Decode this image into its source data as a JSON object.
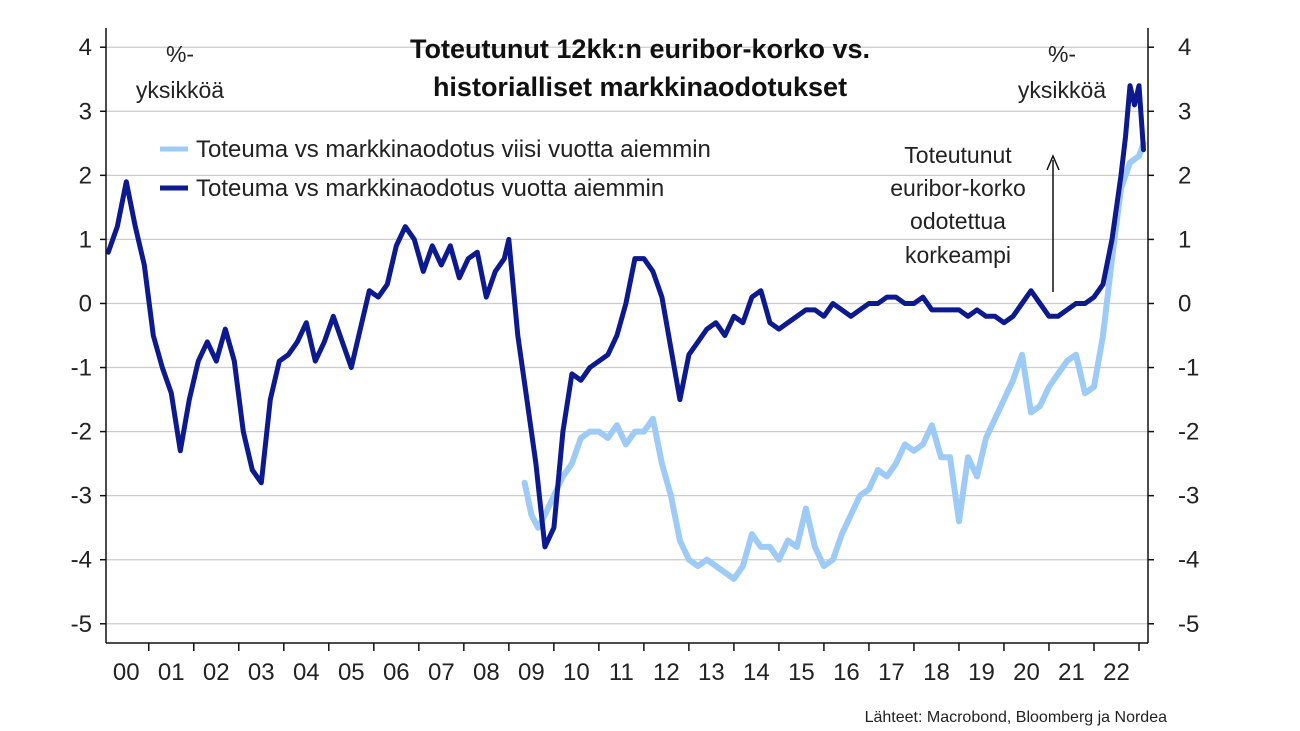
{
  "chart_data": {
    "type": "line",
    "title": [
      "Toteutunut 12kk:n euribor-korko vs.",
      "historialliset markkinaodotukset"
    ],
    "unit_left": [
      "%-",
      "yksikköä"
    ],
    "unit_right": [
      "%-",
      "yksikköä"
    ],
    "annotation": [
      "Toteutunut",
      "euribor-korko",
      "odotettua",
      "korkeampi"
    ],
    "source": "Lähteet: Macrobond, Bloomberg ja Nordea",
    "ylim": [
      -5.3,
      4.3
    ],
    "y_ticks": [
      4,
      3,
      2,
      1,
      0,
      -1,
      -2,
      -3,
      -4,
      -5
    ],
    "y_tick_labels": [
      "4",
      "3",
      "2",
      "1",
      "0",
      "-1",
      "-2",
      "-3",
      "-4",
      "-5"
    ],
    "xlim": [
      1999.55,
      2022.7
    ],
    "x_tick_positions": [
      2000,
      2001,
      2002,
      2003,
      2004,
      2005,
      2006,
      2007,
      2008,
      2009,
      2010,
      2011,
      2012,
      2013,
      2014,
      2015,
      2016,
      2017,
      2018,
      2019,
      2020,
      2021,
      2022
    ],
    "x_tick_labels": [
      "00",
      "01",
      "02",
      "03",
      "04",
      "05",
      "06",
      "07",
      "08",
      "09",
      "10",
      "11",
      "12",
      "13",
      "14",
      "15",
      "16",
      "17",
      "18",
      "19",
      "20",
      "21",
      "22"
    ],
    "grid": "horizontal",
    "legend_position": "top-left",
    "colors": {
      "five_year": "#9ecbf5",
      "one_year": "#0d1a8f",
      "grid": "#cccccc",
      "axis": "#111111"
    },
    "series": [
      {
        "name": "Toteuma vs markkinaodotus viisi vuotta aiemmin",
        "color": "#9ecbf5",
        "x": [
          2008.85,
          2009.0,
          2009.15,
          2009.3,
          2009.5,
          2009.7,
          2009.9,
          2010.1,
          2010.3,
          2010.5,
          2010.7,
          2010.9,
          2011.1,
          2011.3,
          2011.5,
          2011.7,
          2011.9,
          2012.1,
          2012.3,
          2012.5,
          2012.7,
          2012.9,
          2013.1,
          2013.3,
          2013.5,
          2013.7,
          2013.9,
          2014.1,
          2014.3,
          2014.5,
          2014.7,
          2014.9,
          2015.1,
          2015.3,
          2015.5,
          2015.7,
          2015.9,
          2016.1,
          2016.3,
          2016.5,
          2016.7,
          2016.9,
          2017.1,
          2017.3,
          2017.5,
          2017.7,
          2017.9,
          2018.1,
          2018.3,
          2018.5,
          2018.7,
          2018.9,
          2019.1,
          2019.3,
          2019.5,
          2019.7,
          2019.9,
          2020.1,
          2020.3,
          2020.5,
          2020.7,
          2020.9,
          2021.1,
          2021.3,
          2021.5,
          2021.7,
          2021.9,
          2022.1,
          2022.3,
          2022.5,
          2022.6
        ],
        "values": [
          -2.8,
          -3.3,
          -3.5,
          -3.3,
          -3.0,
          -2.7,
          -2.5,
          -2.1,
          -2.0,
          -2.0,
          -2.1,
          -1.9,
          -2.2,
          -2.0,
          -2.0,
          -1.8,
          -2.5,
          -3.0,
          -3.7,
          -4.0,
          -4.1,
          -4.0,
          -4.1,
          -4.2,
          -4.3,
          -4.1,
          -3.6,
          -3.8,
          -3.8,
          -4.0,
          -3.7,
          -3.8,
          -3.2,
          -3.8,
          -4.1,
          -4.0,
          -3.6,
          -3.3,
          -3.0,
          -2.9,
          -2.6,
          -2.7,
          -2.5,
          -2.2,
          -2.3,
          -2.2,
          -1.9,
          -2.4,
          -2.4,
          -3.4,
          -2.4,
          -2.7,
          -2.1,
          -1.8,
          -1.5,
          -1.2,
          -0.8,
          -1.7,
          -1.6,
          -1.3,
          -1.1,
          -0.9,
          -0.8,
          -1.4,
          -1.3,
          -0.5,
          0.7,
          1.8,
          2.2,
          2.3,
          2.5
        ]
      },
      {
        "name": "Toteuma vs markkinaodotus vuotta aiemmin",
        "color": "#0d1a8f",
        "x": [
          1999.6,
          1999.8,
          2000.0,
          2000.2,
          2000.4,
          2000.6,
          2000.8,
          2001.0,
          2001.2,
          2001.4,
          2001.6,
          2001.8,
          2002.0,
          2002.2,
          2002.4,
          2002.6,
          2002.8,
          2003.0,
          2003.2,
          2003.4,
          2003.6,
          2003.8,
          2004.0,
          2004.2,
          2004.4,
          2004.6,
          2004.8,
          2005.0,
          2005.2,
          2005.4,
          2005.6,
          2005.8,
          2006.0,
          2006.2,
          2006.4,
          2006.6,
          2006.8,
          2007.0,
          2007.2,
          2007.4,
          2007.6,
          2007.8,
          2008.0,
          2008.2,
          2008.4,
          2008.5,
          2008.7,
          2008.9,
          2009.1,
          2009.3,
          2009.5,
          2009.7,
          2009.9,
          2010.1,
          2010.3,
          2010.5,
          2010.7,
          2010.9,
          2011.1,
          2011.3,
          2011.5,
          2011.7,
          2011.9,
          2012.1,
          2012.3,
          2012.5,
          2012.7,
          2012.9,
          2013.1,
          2013.3,
          2013.5,
          2013.7,
          2013.9,
          2014.1,
          2014.3,
          2014.5,
          2014.7,
          2014.9,
          2015.1,
          2015.3,
          2015.5,
          2015.7,
          2015.9,
          2016.1,
          2016.3,
          2016.5,
          2016.7,
          2016.9,
          2017.1,
          2017.3,
          2017.5,
          2017.7,
          2017.9,
          2018.1,
          2018.3,
          2018.5,
          2018.7,
          2018.9,
          2019.1,
          2019.3,
          2019.5,
          2019.7,
          2019.9,
          2020.1,
          2020.3,
          2020.5,
          2020.7,
          2020.9,
          2021.1,
          2021.3,
          2021.5,
          2021.7,
          2021.9,
          2022.0,
          2022.1,
          2022.2,
          2022.3,
          2022.4,
          2022.5,
          2022.6
        ],
        "values": [
          0.8,
          1.2,
          1.9,
          1.2,
          0.6,
          -0.5,
          -1.0,
          -1.4,
          -2.3,
          -1.5,
          -0.9,
          -0.6,
          -0.9,
          -0.4,
          -0.9,
          -2.0,
          -2.6,
          -2.8,
          -1.5,
          -0.9,
          -0.8,
          -0.6,
          -0.3,
          -0.9,
          -0.6,
          -0.2,
          -0.6,
          -1.0,
          -0.4,
          0.2,
          0.1,
          0.3,
          0.9,
          1.2,
          1.0,
          0.5,
          0.9,
          0.6,
          0.9,
          0.4,
          0.7,
          0.8,
          0.1,
          0.5,
          0.7,
          1.0,
          -0.5,
          -1.5,
          -2.5,
          -3.8,
          -3.5,
          -2.0,
          -1.1,
          -1.2,
          -1.0,
          -0.9,
          -0.8,
          -0.5,
          0.0,
          0.7,
          0.7,
          0.5,
          0.1,
          -0.7,
          -1.5,
          -0.8,
          -0.6,
          -0.4,
          -0.3,
          -0.5,
          -0.2,
          -0.3,
          0.1,
          0.2,
          -0.3,
          -0.4,
          -0.3,
          -0.2,
          -0.1,
          -0.1,
          -0.2,
          0.0,
          -0.1,
          -0.2,
          -0.1,
          0.0,
          0.0,
          0.1,
          0.1,
          0.0,
          0.0,
          0.1,
          -0.1,
          -0.1,
          -0.1,
          -0.1,
          -0.2,
          -0.1,
          -0.2,
          -0.2,
          -0.3,
          -0.2,
          0.0,
          0.2,
          0.0,
          -0.2,
          -0.2,
          -0.1,
          0.0,
          0.0,
          0.1,
          0.3,
          1.0,
          1.5,
          2.0,
          2.6,
          3.4,
          3.1,
          3.4,
          2.4
        ]
      }
    ]
  }
}
